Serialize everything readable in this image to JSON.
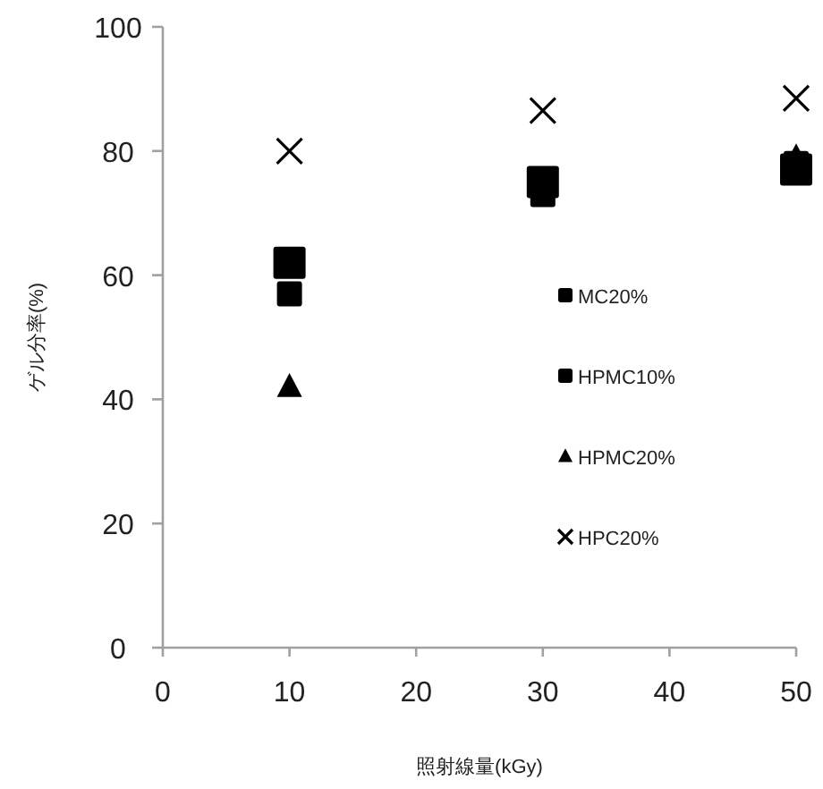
{
  "chart_data": {
    "type": "scatter",
    "xlabel": "照射線量(kGy)",
    "ylabel": "ゲル分率(%)",
    "x": [
      10,
      30,
      50
    ],
    "series": [
      {
        "name": "MC20%",
        "color": "#000000",
        "marker": "square",
        "values": [
          62,
          75,
          77
        ]
      },
      {
        "name": "HPMC10%",
        "color": "#000000",
        "marker": "square",
        "values": [
          57,
          73,
          78
        ]
      },
      {
        "name": "HPMC20%",
        "color": "#000000",
        "marker": "triangle",
        "values": [
          42,
          null,
          79
        ]
      },
      {
        "name": "HPC20%",
        "color": "#000000",
        "marker": "cross",
        "values": [
          80,
          86.5,
          88.5
        ]
      }
    ],
    "xlim": [
      0,
      50
    ],
    "xticks": [
      0,
      10,
      20,
      30,
      40,
      50
    ],
    "ylim": [
      0,
      100
    ],
    "yticks": [
      0,
      20,
      40,
      60,
      80,
      100
    ],
    "grid": false,
    "legend": "right"
  }
}
